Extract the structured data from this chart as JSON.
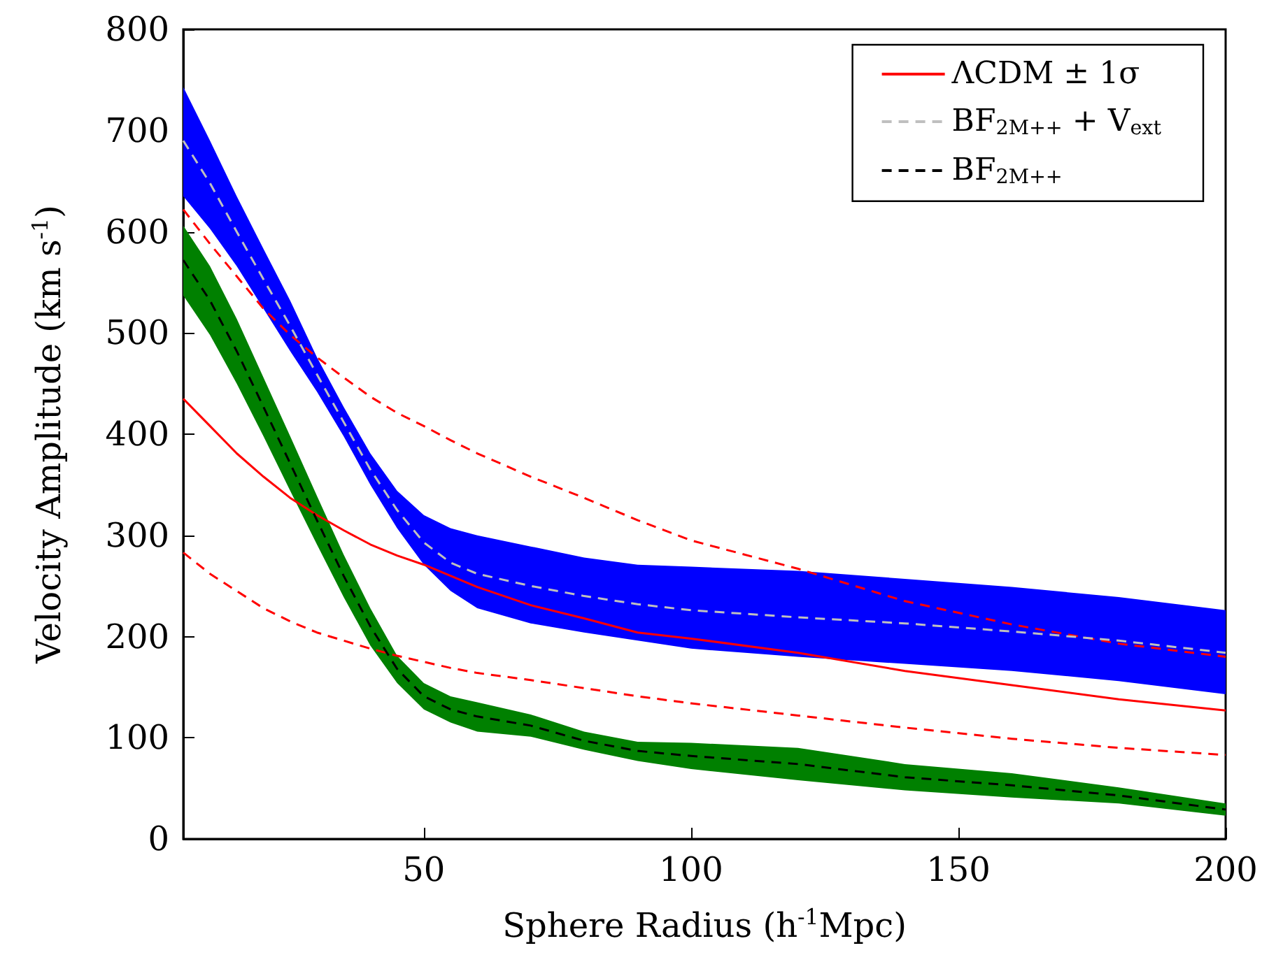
{
  "chart_data": {
    "type": "line",
    "xlabel": "Sphere Radius (h$^{-1}$Mpc)",
    "ylabel": "Velocity Amplitude (km s$^{-1}$)",
    "x": [
      5,
      10,
      15,
      20,
      25,
      30,
      35,
      40,
      45,
      50,
      55,
      60,
      70,
      80,
      90,
      100,
      120,
      140,
      160,
      180,
      200
    ],
    "xlim": [
      5,
      200
    ],
    "xticks": [
      50,
      100,
      150,
      200
    ],
    "ylim": [
      0,
      800
    ],
    "yticks": [
      0,
      100,
      200,
      300,
      400,
      500,
      600,
      700,
      800
    ],
    "grid": false,
    "legend": "top right",
    "marker": "none",
    "series": [
      {
        "name": "ΛCDM ± 1σ",
        "color": "#ff0000",
        "line_style": "solid",
        "values": [
          435,
          408,
          381,
          358,
          337,
          320,
          305,
          291,
          280,
          271,
          260,
          249,
          231,
          218,
          204,
          198,
          184,
          166,
          152,
          138,
          127
        ]
      },
      {
        "color": "#ff0000",
        "line_style": "dashed",
        "values": [
          622,
          588,
          556,
          524,
          498,
          476,
          456,
          437,
          421,
          408,
          394,
          381,
          358,
          337,
          315,
          295,
          267,
          235,
          212,
          193,
          180
        ]
      },
      {
        "color": "#ff0000",
        "line_style": "dashed",
        "values": [
          283,
          262,
          245,
          228,
          215,
          204,
          196,
          188,
          181,
          175,
          169,
          164,
          157,
          149,
          141,
          134,
          122,
          110,
          99,
          90,
          83
        ]
      },
      {
        "name": "BF$_{2M++}$ + V$_{ext}$",
        "color": "#bfbfbf",
        "line_style": "dashed",
        "values": [
          690,
          648,
          600,
          553,
          507,
          459,
          412,
          365,
          325,
          293,
          273,
          262,
          250,
          240,
          232,
          226,
          219,
          213,
          205,
          196,
          184
        ],
        "lower": [
          635,
          603,
          566,
          524,
          482,
          442,
          398,
          350,
          307,
          271,
          245,
          228,
          213,
          204,
          196,
          188,
          180,
          173,
          166,
          156,
          143
        ],
        "upper": [
          743,
          690,
          635,
          583,
          532,
          476,
          427,
          381,
          344,
          320,
          307,
          300,
          289,
          278,
          271,
          269,
          265,
          257,
          249,
          239,
          226
        ]
      },
      {
        "name": "BF$_{2M++}$",
        "color": "#000000",
        "line_style": "dashed",
        "values": [
          572,
          532,
          482,
          427,
          371,
          315,
          260,
          210,
          168,
          141,
          128,
          121,
          112,
          97,
          87,
          82,
          74,
          61,
          53,
          43,
          29
        ],
        "lower": [
          537,
          498,
          450,
          398,
          344,
          291,
          239,
          191,
          154,
          128,
          115,
          106,
          101,
          88,
          77,
          69,
          58,
          48,
          41,
          35,
          23
        ],
        "upper": [
          606,
          566,
          514,
          456,
          398,
          339,
          281,
          228,
          181,
          154,
          141,
          135,
          123,
          106,
          96,
          95,
          90,
          74,
          65,
          51,
          35
        ]
      }
    ]
  }
}
